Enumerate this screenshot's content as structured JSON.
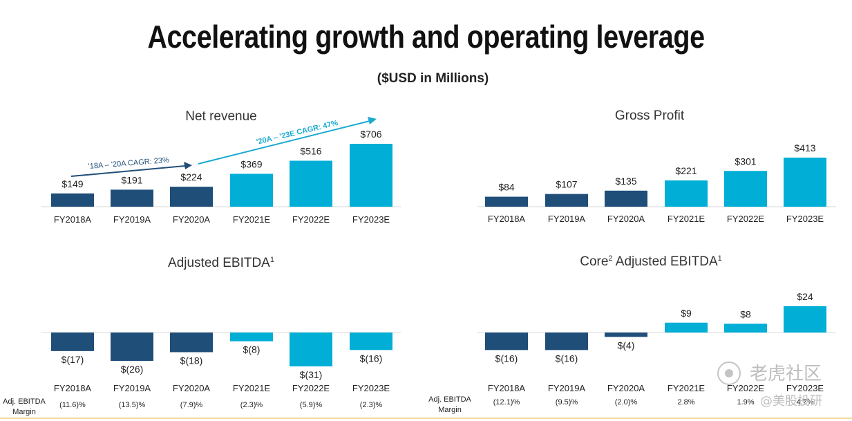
{
  "title": "Accelerating growth and operating leverage",
  "subtitle": "($USD in Millions)",
  "colors": {
    "actual": "#1f4e79",
    "estimate": "#00aed6",
    "axis": "#d9d9d9",
    "cagr_first": "#1f4e79",
    "cagr_second": "#19aacf"
  },
  "chart_data": [
    {
      "type": "bar",
      "title": "Net revenue",
      "categories": [
        "FY2018A",
        "FY2019A",
        "FY2020A",
        "FY2021E",
        "FY2022E",
        "FY2023E"
      ],
      "values": [
        149,
        191,
        224,
        369,
        516,
        706
      ],
      "value_labels": [
        "$149",
        "$191",
        "$224",
        "$369",
        "$516",
        "$706"
      ],
      "annotations": [
        "'18A – '20A CAGR: 23%",
        "'20A – '23E CAGR: 47%"
      ]
    },
    {
      "type": "bar",
      "title": "Gross Profit",
      "categories": [
        "FY2018A",
        "FY2019A",
        "FY2020A",
        "FY2021E",
        "FY2022E",
        "FY2023E"
      ],
      "values": [
        84,
        107,
        135,
        221,
        301,
        413
      ],
      "value_labels": [
        "$84",
        "$107",
        "$135",
        "$221",
        "$301",
        "$413"
      ]
    },
    {
      "type": "bar",
      "title": "Adjusted EBITDA",
      "title_sup": "1",
      "categories": [
        "FY2018A",
        "FY2019A",
        "FY2020A",
        "FY2021E",
        "FY2022E",
        "FY2023E"
      ],
      "values": [
        -17,
        -26,
        -18,
        -8,
        -31,
        -16
      ],
      "value_labels": [
        "$(17)",
        "$(26)",
        "$(18)",
        "$(8)",
        "$(31)",
        "$(16)"
      ],
      "margin_label": [
        "Adj. EBITDA",
        "Margin"
      ],
      "margins": [
        "(11.6)%",
        "(13.5)%",
        "(7.9)%",
        "(2.3)%",
        "(5.9)%",
        "(2.3)%"
      ]
    },
    {
      "type": "bar",
      "title_pre": "Core",
      "title_sup1": "2",
      "title_main": " Adjusted EBITDA",
      "title_sup": "1",
      "categories": [
        "FY2018A",
        "FY2019A",
        "FY2020A",
        "FY2021E",
        "FY2022E",
        "FY2023E"
      ],
      "values": [
        -16,
        -16,
        -4,
        9,
        8,
        24
      ],
      "value_labels": [
        "$(16)",
        "$(16)",
        "$(4)",
        "$9",
        "$8",
        "$24"
      ],
      "margin_label": [
        "Adj. EBITDA",
        "Margin"
      ],
      "margins": [
        "(12.1)%",
        "(9.5)%",
        "(2.0)%",
        "2.8%",
        "1.9%",
        "4.7%"
      ]
    }
  ],
  "watermark": {
    "line1": "老虎社区",
    "line2": "@美股投研"
  }
}
